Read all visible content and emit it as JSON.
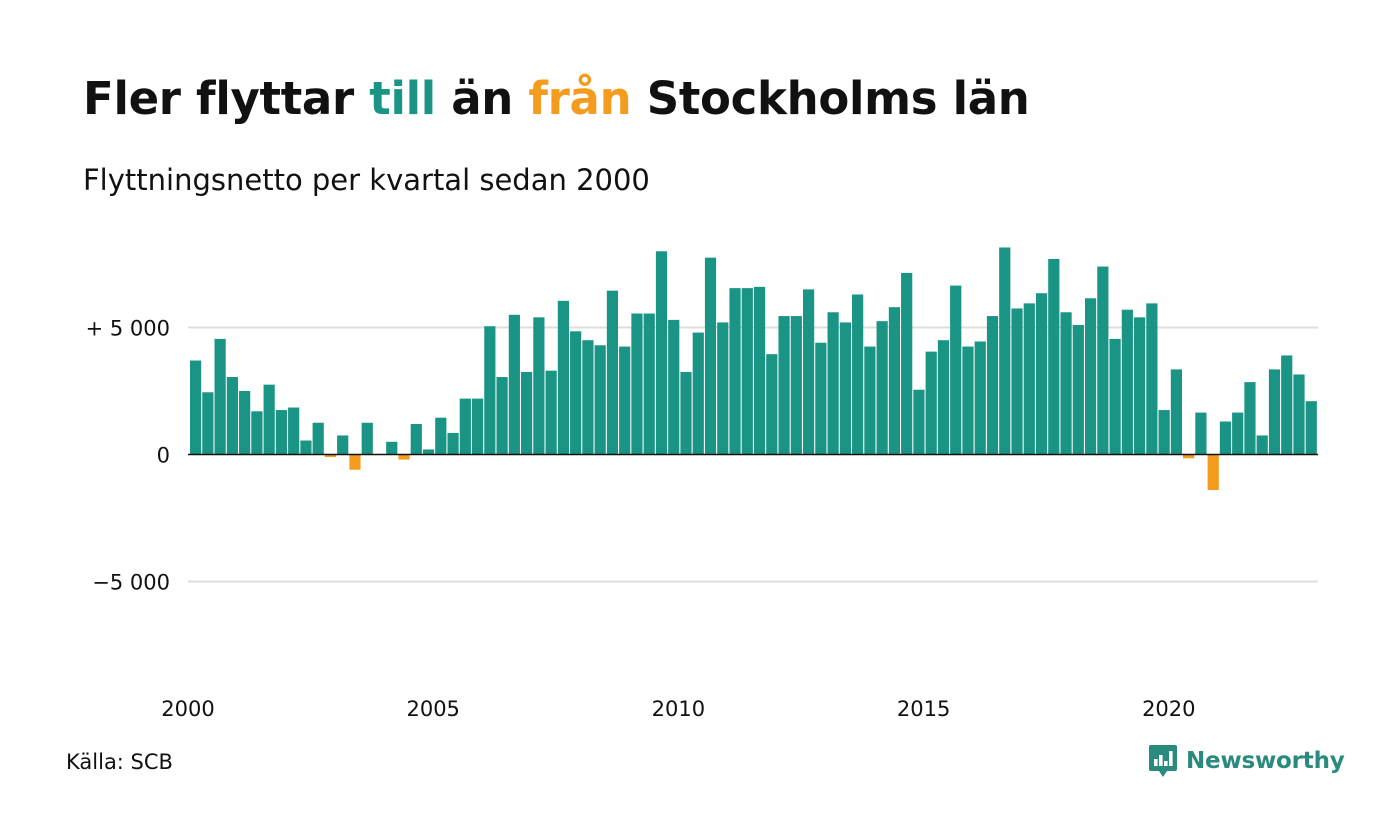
{
  "title": {
    "part1": "Fler flyttar ",
    "highlight_to": "till",
    "part2": " än ",
    "highlight_from": "från",
    "part3": " Stockholms län"
  },
  "subtitle": "Flyttningsnetto per kvartal sedan 2000",
  "source": "Källa: SCB",
  "brand": {
    "name": "Newsworthy",
    "icon": "newsworthy-logo-icon"
  },
  "colors": {
    "positive": "#1a9484",
    "negative": "#f39c1d",
    "grid": "#dddddd",
    "zero_line": "#111111",
    "text": "#111111"
  },
  "chart_data": {
    "type": "bar",
    "title": "Fler flyttar till än från Stockholms län",
    "subtitle": "Flyttningsnetto per kvartal sedan 2000",
    "x_start": 2000,
    "periods_per_year": 4,
    "values": [
      3700,
      2450,
      4550,
      3050,
      2500,
      1700,
      2750,
      1750,
      1850,
      550,
      1250,
      -100,
      750,
      -600,
      1250,
      0,
      500,
      -200,
      1200,
      200,
      1450,
      850,
      2200,
      2200,
      5050,
      3050,
      5500,
      3250,
      5400,
      3300,
      6050,
      4850,
      4500,
      4300,
      6450,
      4250,
      5550,
      5550,
      8000,
      5300,
      3250,
      4800,
      7750,
      5200,
      6550,
      6550,
      6600,
      3950,
      5450,
      5450,
      6500,
      4400,
      5600,
      5200,
      6300,
      4250,
      5250,
      5800,
      7150,
      2550,
      4050,
      4500,
      6650,
      4250,
      4450,
      5450,
      8150,
      5750,
      5950,
      6350,
      7700,
      5600,
      5100,
      6150,
      7400,
      4550,
      5700,
      5400,
      5950,
      1750,
      3350,
      -150,
      1650,
      -1400,
      1300,
      1650,
      2850,
      750,
      3350,
      3900,
      3150,
      2100
    ],
    "x_ticks": [
      "2000",
      "2005",
      "2010",
      "2015",
      "2020"
    ],
    "y_ticks": [
      {
        "value": 5000,
        "label": "+ 5 000"
      },
      {
        "value": 0,
        "label": "0"
      },
      {
        "value": -5000,
        "label": "−5 000"
      }
    ],
    "ylim": [
      -9000,
      9000
    ],
    "grid": true,
    "legend": "none"
  }
}
